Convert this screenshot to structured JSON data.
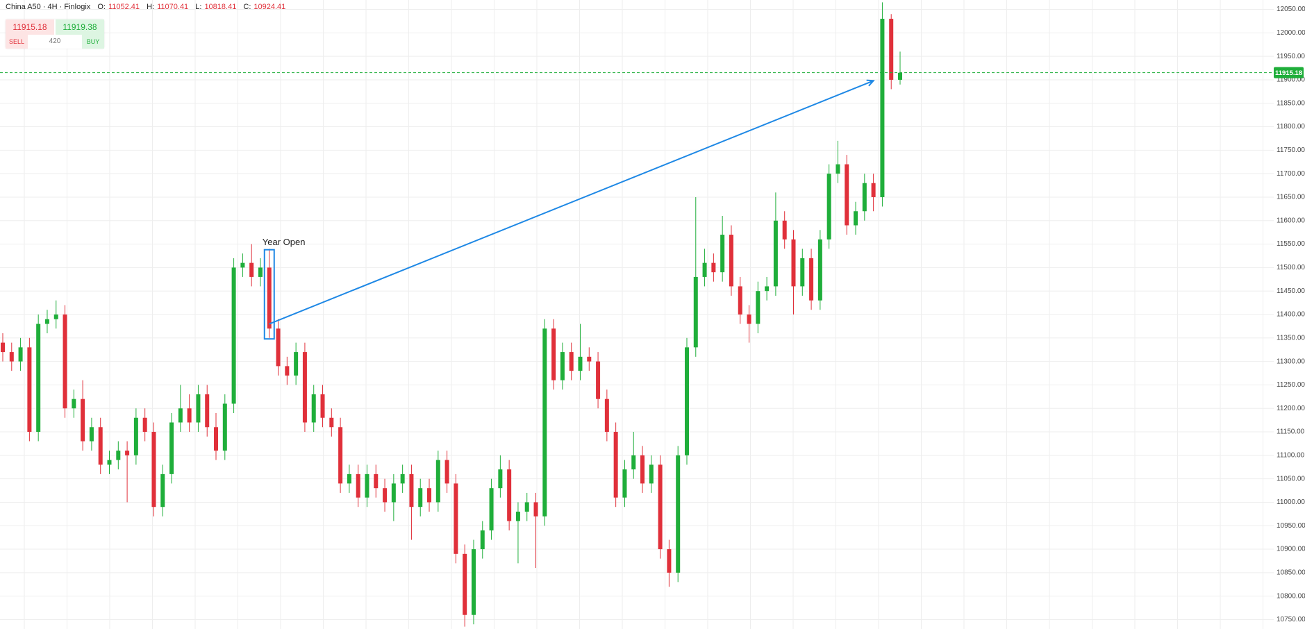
{
  "header": {
    "symbol": "China A50 · 4H · Finlogix",
    "ohlc": [
      {
        "key": "O:",
        "value": "11052.41"
      },
      {
        "key": "H:",
        "value": "11070.41"
      },
      {
        "key": "L:",
        "value": "10818.41"
      },
      {
        "key": "C:",
        "value": "10924.41"
      }
    ]
  },
  "trade": {
    "sell_price": "11915.18",
    "buy_price": "11919.38",
    "sell": "SELL",
    "quantity": "420",
    "buy": "BUY"
  },
  "chart_data": {
    "type": "candlestick",
    "up_color": "#1fae3a",
    "down_color": "#e0303a",
    "ylim": [
      10730,
      12070
    ],
    "yticks": [
      {
        "value": 10750,
        "label": "10750.00"
      },
      {
        "value": 10800,
        "label": "10800.00"
      },
      {
        "value": 10850,
        "label": "10850.00"
      },
      {
        "value": 10900,
        "label": "10900.00"
      },
      {
        "value": 10950,
        "label": "10950.00"
      },
      {
        "value": 11000,
        "label": "11000.00"
      },
      {
        "value": 11050,
        "label": "11050.00"
      },
      {
        "value": 11100,
        "label": "11100.00"
      },
      {
        "value": 11150,
        "label": "11150.00"
      },
      {
        "value": 11200,
        "label": "11200.00"
      },
      {
        "value": 11250,
        "label": "11250.00"
      },
      {
        "value": 11300,
        "label": "11300.00"
      },
      {
        "value": 11350,
        "label": "11350.00"
      },
      {
        "value": 11400,
        "label": "11400.00"
      },
      {
        "value": 11450,
        "label": "11450.00"
      },
      {
        "value": 11500,
        "label": "11500.00"
      },
      {
        "value": 11550,
        "label": "11550.00"
      },
      {
        "value": 11600,
        "label": "11600.00"
      },
      {
        "value": 11650,
        "label": "11650.00"
      },
      {
        "value": 11700,
        "label": "11700.00"
      },
      {
        "value": 11750,
        "label": "11750.00"
      },
      {
        "value": 11800,
        "label": "11800.00"
      },
      {
        "value": 11850,
        "label": "11850.00"
      },
      {
        "value": 11900,
        "label": "11900.00"
      },
      {
        "value": 11950,
        "label": "11950.00"
      },
      {
        "value": 12000,
        "label": "12000.00"
      },
      {
        "value": 12050,
        "label": "12050.00"
      }
    ],
    "grid": true,
    "last_price": 11915.18,
    "last_price_color": "#1fae3a",
    "open": [
      11340,
      11320,
      11300,
      11330,
      11150,
      11380,
      11390,
      11400,
      11200,
      11220,
      11130,
      11160,
      11080,
      11090,
      11110,
      11100,
      11180,
      11150,
      10990,
      11060,
      11170,
      11200,
      11170,
      11230,
      11160,
      11110,
      11210,
      11500,
      11510,
      11480,
      11500,
      11370,
      11290,
      11270,
      11320,
      11170,
      11230,
      11180,
      11160,
      11040,
      11060,
      11010,
      11060,
      11030,
      11000,
      11040,
      11060,
      10990,
      11030,
      11000,
      11090,
      11040,
      10890,
      10760,
      10900,
      10940,
      11030,
      11070,
      10960,
      10980,
      11000,
      10970,
      11370,
      11260,
      11320,
      11280,
      11310,
      11300,
      11220,
      11150,
      11010,
      11070,
      11100,
      11040,
      11080,
      10900,
      10850,
      11100,
      11330,
      11480,
      11510,
      11490,
      11570,
      11460,
      11400,
      11380,
      11450,
      11460,
      11600,
      11560,
      11460,
      11520,
      11430,
      11560,
      11700,
      11720,
      11590,
      11620,
      11680,
      11650,
      12030,
      11900
    ],
    "high": [
      11360,
      11340,
      11350,
      11350,
      11400,
      11410,
      11430,
      11420,
      11240,
      11260,
      11180,
      11180,
      11110,
      11130,
      11130,
      11200,
      11200,
      11170,
      11080,
      11190,
      11250,
      11230,
      11250,
      11250,
      11190,
      11230,
      11520,
      11530,
      11550,
      11520,
      11540,
      11390,
      11310,
      11340,
      11340,
      11250,
      11250,
      11200,
      11180,
      11080,
      11080,
      11080,
      11080,
      11050,
      11060,
      11080,
      11080,
      11050,
      11050,
      11110,
      11110,
      11060,
      10910,
      10920,
      10960,
      11050,
      11100,
      11090,
      11000,
      11020,
      11020,
      11390,
      11390,
      11340,
      11340,
      11380,
      11330,
      11320,
      11240,
      11170,
      11090,
      11150,
      11120,
      11100,
      11100,
      10920,
      11120,
      11350,
      11650,
      11540,
      11530,
      11610,
      11590,
      11480,
      11420,
      11470,
      11480,
      11660,
      11620,
      11580,
      11540,
      11540,
      11580,
      11720,
      11770,
      11740,
      11640,
      11700,
      11700,
      12065,
      12040,
      11960
    ],
    "low": [
      11300,
      11280,
      11280,
      11130,
      11130,
      11360,
      11370,
      11180,
      11180,
      11110,
      11110,
      11060,
      11060,
      11070,
      11000,
      11080,
      11130,
      10970,
      10970,
      11040,
      11150,
      11150,
      11150,
      11140,
      11090,
      11090,
      11190,
      11480,
      11460,
      11460,
      11350,
      11270,
      11250,
      11250,
      11150,
      11150,
      11160,
      11140,
      11020,
      11020,
      10990,
      10990,
      11010,
      10980,
      10960,
      11020,
      10920,
      10970,
      10980,
      10980,
      11020,
      10870,
      10735,
      10740,
      10880,
      10920,
      11010,
      10940,
      10870,
      10960,
      10860,
      10950,
      11240,
      11240,
      11260,
      11260,
      11280,
      11200,
      11130,
      10990,
      10990,
      11050,
      11020,
      11020,
      10880,
      10820,
      10830,
      11080,
      11310,
      11460,
      11470,
      11470,
      11440,
      11380,
      11340,
      11360,
      11430,
      11440,
      11540,
      11400,
      11440,
      11410,
      11410,
      11540,
      11680,
      11570,
      11570,
      11600,
      11620,
      11630,
      11880,
      11890
    ],
    "close": [
      11320,
      11300,
      11330,
      11150,
      11380,
      11390,
      11400,
      11200,
      11220,
      11130,
      11160,
      11080,
      11090,
      11110,
      11100,
      11180,
      11150,
      10990,
      11060,
      11170,
      11200,
      11170,
      11230,
      11160,
      11110,
      11210,
      11500,
      11510,
      11480,
      11500,
      11370,
      11290,
      11270,
      11320,
      11170,
      11230,
      11180,
      11160,
      11040,
      11060,
      11010,
      11060,
      11030,
      11000,
      11040,
      11060,
      10990,
      11030,
      11000,
      11090,
      11040,
      10890,
      10760,
      10900,
      10940,
      11030,
      11070,
      10960,
      10980,
      11000,
      10970,
      11370,
      11260,
      11320,
      11280,
      11310,
      11300,
      11220,
      11150,
      11010,
      11070,
      11100,
      11040,
      11080,
      10900,
      10850,
      11100,
      11330,
      11480,
      11510,
      11490,
      11570,
      11460,
      11400,
      11380,
      11450,
      11460,
      11600,
      11560,
      11460,
      11520,
      11430,
      11560,
      11700,
      11720,
      11590,
      11620,
      11680,
      11650,
      12030,
      11900,
      11915
    ],
    "annotation": {
      "text": "Year Open",
      "index": 30,
      "top": 11538,
      "bottom": 11348,
      "color": "#1e88e5"
    },
    "arrow": {
      "from": {
        "index": 30,
        "price": 11380
      },
      "to": {
        "index": 98,
        "price": 11898
      },
      "color": "#1e88e5"
    }
  }
}
